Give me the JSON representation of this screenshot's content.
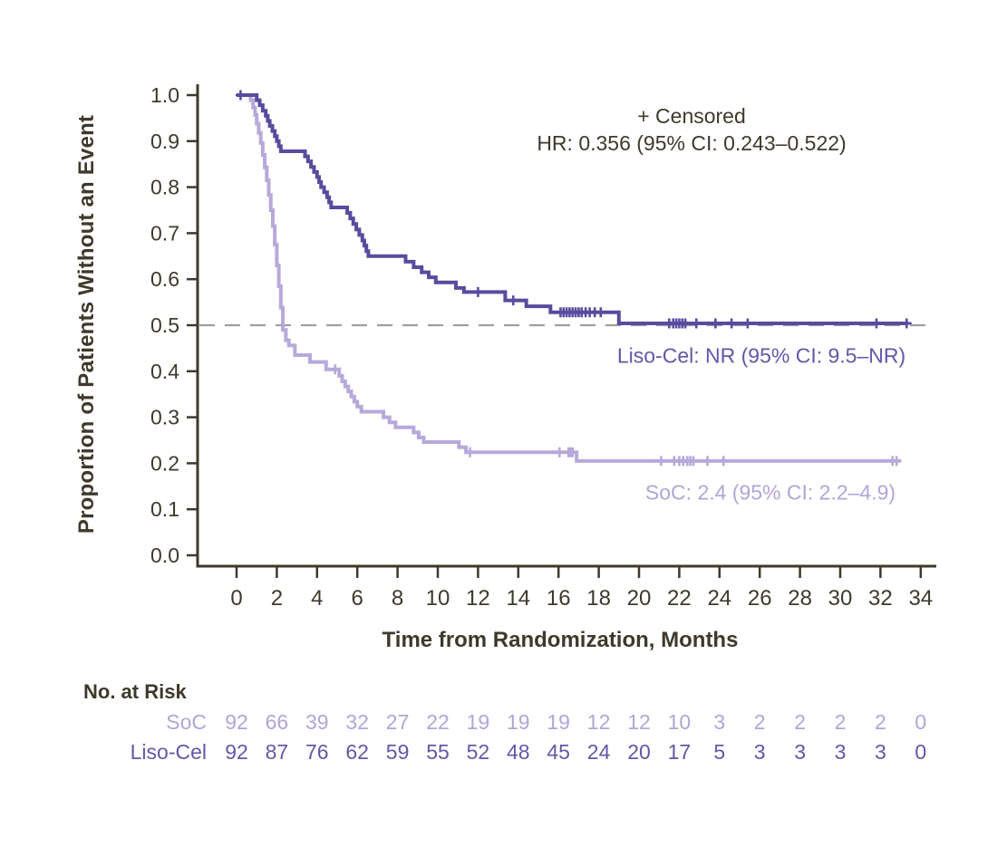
{
  "chart_data": {
    "type": "line",
    "subtype": "kaplan-meier-step",
    "xlabel": "Time from Randomization, Months",
    "ylabel": "Proportion of Patients Without an Event",
    "xlim": [
      0,
      34
    ],
    "ylim": [
      0.0,
      1.0
    ],
    "xticks": [
      0,
      2,
      4,
      6,
      8,
      10,
      12,
      14,
      16,
      18,
      20,
      22,
      24,
      26,
      28,
      30,
      32,
      34
    ],
    "yticks": [
      0.0,
      0.1,
      0.2,
      0.3,
      0.4,
      0.5,
      0.6,
      0.7,
      0.8,
      0.9,
      1.0
    ],
    "grid": false,
    "reference_line_y": 0.5,
    "annotations": {
      "censored_label": "+ Censored",
      "hr_label": "HR: 0.356 (95% CI: 0.243–0.522)",
      "liso_label": "Liso-Cel: NR (95% CI: 9.5–NR)",
      "soc_label": "SoC: 2.4 (95% CI: 2.2–4.9)"
    },
    "series": [
      {
        "name": "SoC",
        "color": "#B7A9DA",
        "end": 33.0,
        "steps": [
          [
            0,
            1.0
          ],
          [
            0.7,
            0.989
          ],
          [
            0.82,
            0.973
          ],
          [
            0.92,
            0.957
          ],
          [
            1.0,
            0.938
          ],
          [
            1.1,
            0.918
          ],
          [
            1.2,
            0.896
          ],
          [
            1.3,
            0.87
          ],
          [
            1.4,
            0.843
          ],
          [
            1.5,
            0.815
          ],
          [
            1.6,
            0.783
          ],
          [
            1.7,
            0.75
          ],
          [
            1.8,
            0.715
          ],
          [
            1.9,
            0.675
          ],
          [
            2.0,
            0.63
          ],
          [
            2.1,
            0.585
          ],
          [
            2.2,
            0.538
          ],
          [
            2.3,
            0.49
          ],
          [
            2.45,
            0.467
          ],
          [
            2.6,
            0.456
          ],
          [
            2.9,
            0.435
          ],
          [
            3.65,
            0.42
          ],
          [
            4.45,
            0.404
          ],
          [
            5.1,
            0.39
          ],
          [
            5.25,
            0.378
          ],
          [
            5.4,
            0.367
          ],
          [
            5.55,
            0.356
          ],
          [
            5.7,
            0.345
          ],
          [
            5.85,
            0.334
          ],
          [
            6.0,
            0.323
          ],
          [
            6.2,
            0.312
          ],
          [
            7.3,
            0.3
          ],
          [
            7.6,
            0.289
          ],
          [
            7.9,
            0.278
          ],
          [
            8.8,
            0.267
          ],
          [
            9.05,
            0.256
          ],
          [
            9.3,
            0.246
          ],
          [
            11.05,
            0.235
          ],
          [
            11.4,
            0.224
          ],
          [
            16.9,
            0.205
          ]
        ],
        "censor_times": [
          4.9,
          11.6,
          16.05,
          16.5,
          16.6,
          16.7,
          21.1,
          21.75,
          22.0,
          22.2,
          22.4,
          22.55,
          22.7,
          23.4,
          24.2,
          32.6,
          32.8
        ]
      },
      {
        "name": "Liso-Cel",
        "color": "#5A4B9E",
        "end": 33.4,
        "steps": [
          [
            0,
            1.0
          ],
          [
            1.0,
            0.989
          ],
          [
            1.15,
            0.978
          ],
          [
            1.3,
            0.966
          ],
          [
            1.45,
            0.955
          ],
          [
            1.55,
            0.944
          ],
          [
            1.65,
            0.933
          ],
          [
            1.78,
            0.922
          ],
          [
            1.9,
            0.911
          ],
          [
            2.0,
            0.9
          ],
          [
            2.1,
            0.889
          ],
          [
            2.2,
            0.878
          ],
          [
            3.4,
            0.867
          ],
          [
            3.55,
            0.856
          ],
          [
            3.7,
            0.844
          ],
          [
            3.85,
            0.833
          ],
          [
            4.0,
            0.822
          ],
          [
            4.1,
            0.811
          ],
          [
            4.2,
            0.8
          ],
          [
            4.35,
            0.789
          ],
          [
            4.5,
            0.778
          ],
          [
            4.6,
            0.767
          ],
          [
            4.7,
            0.756
          ],
          [
            5.5,
            0.744
          ],
          [
            5.65,
            0.732
          ],
          [
            5.8,
            0.72
          ],
          [
            5.95,
            0.708
          ],
          [
            6.1,
            0.696
          ],
          [
            6.25,
            0.684
          ],
          [
            6.35,
            0.673
          ],
          [
            6.45,
            0.661
          ],
          [
            6.55,
            0.65
          ],
          [
            8.4,
            0.638
          ],
          [
            8.8,
            0.626
          ],
          [
            9.2,
            0.615
          ],
          [
            9.55,
            0.604
          ],
          [
            9.9,
            0.593
          ],
          [
            10.9,
            0.581
          ],
          [
            11.3,
            0.572
          ],
          [
            13.35,
            0.554
          ],
          [
            14.4,
            0.541
          ],
          [
            15.6,
            0.528
          ],
          [
            19.0,
            0.504
          ]
        ],
        "censor_times": [
          0.2,
          12.0,
          13.75,
          16.1,
          16.25,
          16.4,
          16.55,
          16.7,
          16.85,
          17.0,
          17.15,
          17.35,
          17.55,
          17.8,
          18.1,
          21.5,
          21.7,
          21.85,
          22.0,
          22.15,
          22.3,
          22.85,
          23.8,
          24.6,
          25.4,
          31.8,
          33.3
        ]
      }
    ],
    "risk_table": {
      "title": "No. at Risk",
      "months": [
        0,
        2,
        4,
        6,
        8,
        10,
        12,
        14,
        16,
        18,
        20,
        22,
        24,
        26,
        28,
        30,
        32,
        34
      ],
      "rows": [
        {
          "name": "SoC",
          "color": "#B2A5D6",
          "values": [
            92,
            66,
            39,
            32,
            27,
            22,
            19,
            19,
            19,
            12,
            12,
            10,
            3,
            2,
            2,
            2,
            2,
            0
          ]
        },
        {
          "name": "Liso-Cel",
          "color": "#6457A8",
          "values": [
            92,
            87,
            76,
            62,
            59,
            55,
            52,
            48,
            45,
            24,
            20,
            17,
            5,
            3,
            3,
            3,
            3,
            0
          ]
        }
      ]
    },
    "colors": {
      "axis_text": "#3E392B",
      "axis_line": "#3E392B",
      "dashed_line": "#9E9E9E",
      "background": "#FFFFFF"
    }
  }
}
